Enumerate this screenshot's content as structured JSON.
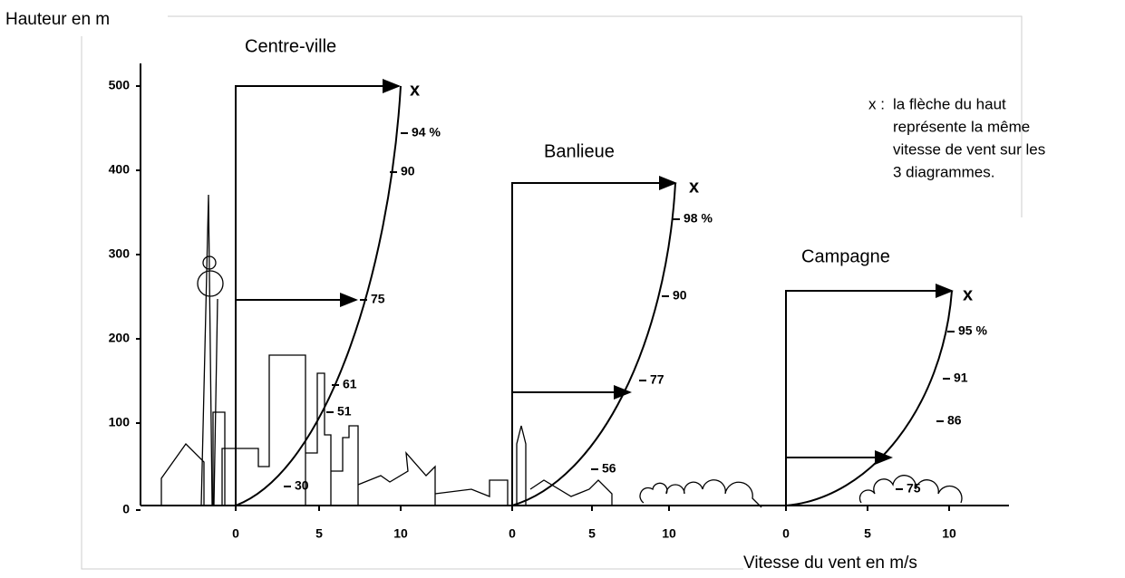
{
  "y_axis": {
    "label": "Hauteur en m",
    "ticks": [
      0,
      100,
      200,
      300,
      400,
      500
    ]
  },
  "x_axis": {
    "label": "Vitesse du vent en m/s"
  },
  "panels": [
    {
      "title": "Centre-ville",
      "x_ticks": [
        0,
        5,
        10
      ],
      "top_marker": "x",
      "profile_labels": [
        "94 %",
        "90",
        "75",
        "61",
        "51",
        "30"
      ]
    },
    {
      "title": "Banlieue",
      "x_ticks": [
        0,
        5,
        10
      ],
      "top_marker": "x",
      "profile_labels": [
        "98 %",
        "90",
        "77",
        "56"
      ]
    },
    {
      "title": "Campagne",
      "x_ticks": [
        0,
        5,
        10
      ],
      "top_marker": "x",
      "profile_labels": [
        "95 %",
        "91",
        "86",
        "75"
      ]
    }
  ],
  "legend": {
    "marker": "x :",
    "lines": [
      "la flèche du haut",
      "représente la même",
      "vitesse de vent sur les",
      "3 diagrammes."
    ]
  }
}
